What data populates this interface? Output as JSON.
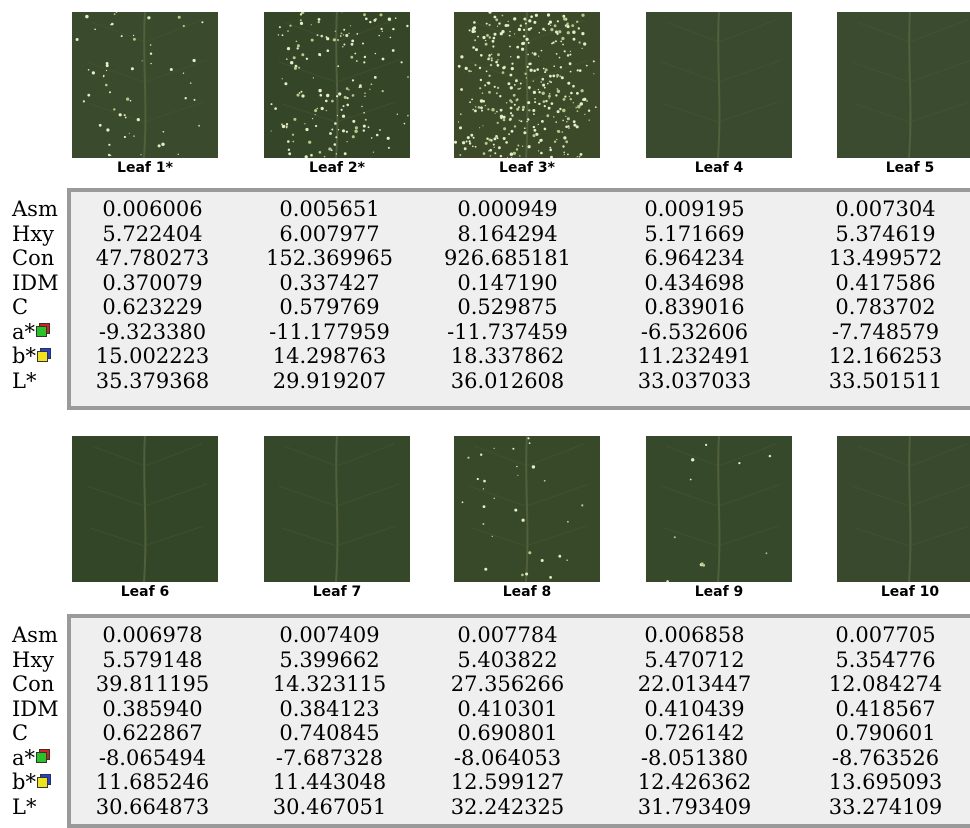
{
  "sets": [
    {
      "leaves": [
        {
          "name": "Leaf 1*",
          "tone": "#3a4a2c",
          "speckle": 0.15
        },
        {
          "name": "Leaf 2*",
          "tone": "#354528",
          "speckle": 0.45
        },
        {
          "name": "Leaf 3*",
          "tone": "#3c4a2a",
          "speckle": 1.0
        },
        {
          "name": "Leaf 4",
          "tone": "#3a4a2e",
          "speckle": 0
        },
        {
          "name": "Leaf 5",
          "tone": "#3b4b2f",
          "speckle": 0
        }
      ],
      "rows": [
        {
          "label": "Asm",
          "values": [
            "0.006006",
            "0.005651",
            "0.000949",
            "0.009195",
            "0.007304"
          ]
        },
        {
          "label": "Hxy",
          "values": [
            "5.722404",
            "6.007977",
            "8.164294",
            "5.171669",
            "5.374619"
          ]
        },
        {
          "label": "Con",
          "values": [
            "47.780273",
            "152.369965",
            "926.685181",
            "6.964234",
            "13.499572"
          ]
        },
        {
          "label": "IDM",
          "values": [
            "0.370079",
            "0.337427",
            "0.147190",
            "0.434698",
            "0.417586"
          ]
        },
        {
          "label": "C",
          "values": [
            "0.623229",
            "0.579769",
            "0.529875",
            "0.839016",
            "0.783702"
          ]
        },
        {
          "label": "a*",
          "icon": "red-green-swatch-icon",
          "values": [
            "-9.323380",
            "-11.177959",
            "-11.737459",
            "-6.532606",
            "-7.748579"
          ]
        },
        {
          "label": "b*",
          "icon": "blue-yellow-swatch-icon",
          "values": [
            "15.002223",
            "14.298763",
            "18.337862",
            "11.232491",
            "12.166253"
          ]
        },
        {
          "label": "L*",
          "values": [
            "35.379368",
            "29.919207",
            "36.012608",
            "33.037033",
            "33.501511"
          ]
        }
      ]
    },
    {
      "leaves": [
        {
          "name": "Leaf 6",
          "tone": "#344628",
          "speckle": 0
        },
        {
          "name": "Leaf 7",
          "tone": "#36482a",
          "speckle": 0
        },
        {
          "name": "Leaf 8",
          "tone": "#374929",
          "speckle": 0.08
        },
        {
          "name": "Leaf 9",
          "tone": "#37492b",
          "speckle": 0.03
        },
        {
          "name": "Leaf 10",
          "tone": "#39492d",
          "speckle": 0
        }
      ],
      "rows": [
        {
          "label": "Asm",
          "values": [
            "0.006978",
            "0.007409",
            "0.007784",
            "0.006858",
            "0.007705"
          ]
        },
        {
          "label": "Hxy",
          "values": [
            "5.579148",
            "5.399662",
            "5.403822",
            "5.470712",
            "5.354776"
          ]
        },
        {
          "label": "Con",
          "values": [
            "39.811195",
            "14.323115",
            "27.356266",
            "22.013447",
            "12.084274"
          ]
        },
        {
          "label": "IDM",
          "values": [
            "0.385940",
            "0.384123",
            "0.410301",
            "0.410439",
            "0.418567"
          ]
        },
        {
          "label": "C",
          "values": [
            "0.622867",
            "0.740845",
            "0.690801",
            "0.726142",
            "0.790601"
          ]
        },
        {
          "label": "a*",
          "icon": "red-green-swatch-icon",
          "values": [
            "-8.065494",
            "-7.687328",
            "-8.064053",
            "-8.051380",
            "-8.763526"
          ]
        },
        {
          "label": "b*",
          "icon": "blue-yellow-swatch-icon",
          "values": [
            "11.685246",
            "11.443048",
            "12.599127",
            "12.426362",
            "13.695093"
          ]
        },
        {
          "label": "L*",
          "values": [
            "30.664873",
            "30.467051",
            "32.242325",
            "31.793409",
            "33.274109"
          ]
        }
      ]
    }
  ],
  "colors": {
    "red": "#e11b1b",
    "green": "#27c427",
    "blue": "#1d3ff0",
    "yellow": "#f2e21a"
  }
}
